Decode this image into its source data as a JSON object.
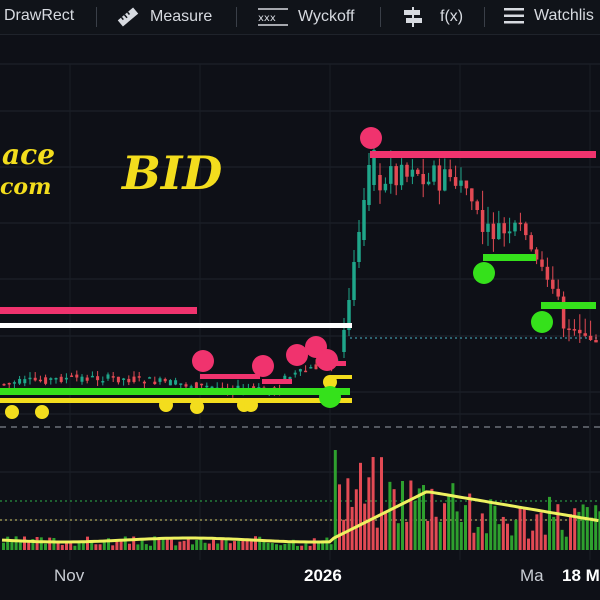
{
  "toolbar": {
    "drawrect": "DrawRect",
    "measure": "Measure",
    "wyckoff": "Wyckoff",
    "fx": "f(x)",
    "watchlist": "Watchlis"
  },
  "watermark": {
    "line1": "ace",
    "line2": "com",
    "bid": "BID"
  },
  "x_axis": {
    "nov": "Nov",
    "y2026": "2026",
    "ma": "Ma",
    "date18": "18 M"
  },
  "colors": {
    "up": "#1fa68a",
    "down": "#e34a54",
    "accent_yellow": "#f3dd1d",
    "pink": "#f0336e",
    "green_level": "#35e11b",
    "background": "#0e1017"
  },
  "chart_data": {
    "type": "candlestick",
    "x_tick_labels": [
      "Nov",
      "2026",
      "Ma",
      "18 M"
    ],
    "price_levels": [
      {
        "color": "pink",
        "role": "resistance-low"
      },
      {
        "color": "white",
        "role": "resistance"
      },
      {
        "color": "green",
        "role": "support"
      },
      {
        "color": "yellow",
        "role": "support"
      },
      {
        "color": "pink",
        "role": "resistance-high"
      },
      {
        "color": "green",
        "role": "support-high-1"
      },
      {
        "color": "green",
        "role": "support-high-2"
      }
    ],
    "markers": {
      "pink_dots": 6,
      "yellow_dots": 7,
      "green_dots": 3
    },
    "volume": {
      "type": "bar",
      "with_moving_average": true
    }
  }
}
